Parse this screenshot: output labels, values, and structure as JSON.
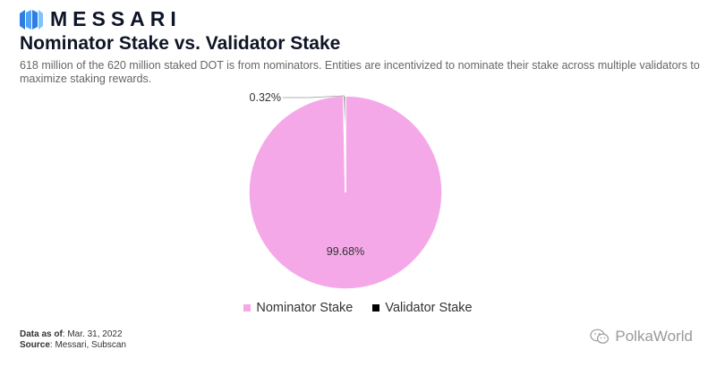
{
  "brand": {
    "name": "MESSARI"
  },
  "header": {
    "title": "Nominator Stake vs. Validator Stake",
    "subtitle": "618 million of the 620 million staked DOT is from nominators. Entities are incentivized to nominate their stake across multiple validators to maximize staking rewards."
  },
  "chart_data": {
    "type": "pie",
    "title": "Nominator Stake vs. Validator Stake",
    "slices": [
      {
        "label": "Nominator Stake",
        "value": 99.68,
        "display": "99.68%",
        "color": "#f4a8e8"
      },
      {
        "label": "Validator Stake",
        "value": 0.32,
        "display": "0.32%",
        "color": "#000000"
      }
    ],
    "legend_position": "bottom"
  },
  "footer": {
    "date_label": "Data as of",
    "date_value": ": Mar. 31, 2022",
    "source_label": "Source",
    "source_value": ": Messari, Subscan"
  },
  "watermark": {
    "text": "PolkaWorld",
    "icon": "wechat-icon"
  }
}
